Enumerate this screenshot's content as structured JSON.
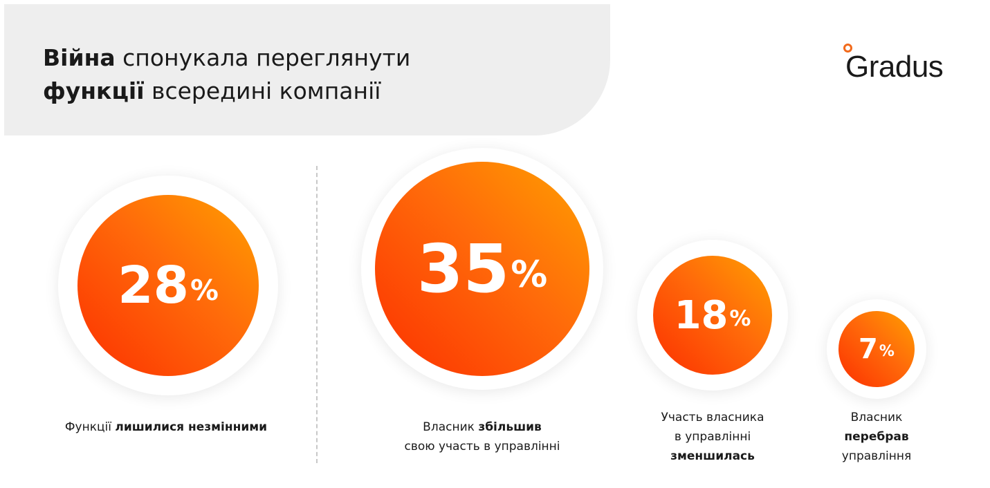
{
  "header": {
    "title_bold_1": "Війна",
    "title_rest_1": " спонукала переглянути",
    "title_bold_2": "функції",
    "title_rest_2": " всередині компанії"
  },
  "logo": {
    "text": "Gradus",
    "accent_color": "#f26a1b"
  },
  "colors": {
    "circle_gradient": [
      "#ffa000",
      "#ff6a0a",
      "#fc3000"
    ],
    "panel": "#eeeeee"
  },
  "chart_data": {
    "type": "bubble",
    "unit": "%",
    "title": "Війна спонукала переглянути функції всередині компанії",
    "items": [
      {
        "value": 28,
        "value_text": "28",
        "unit": "%",
        "label_parts": [
          {
            "text": "Функції ",
            "bold": false
          },
          {
            "text": "лишилися незмінними",
            "bold": true
          }
        ]
      },
      {
        "value": 35,
        "value_text": "35",
        "unit": "%",
        "label_parts": [
          {
            "text": "Власник ",
            "bold": false
          },
          {
            "text": "збільшив",
            "bold": true
          },
          {
            "text": "свою участь в управлінні",
            "bold": false
          }
        ]
      },
      {
        "value": 18,
        "value_text": "18",
        "unit": "%",
        "label_parts": [
          {
            "text": "Участь власника",
            "bold": false
          },
          {
            "text": "в управлінні",
            "bold": false
          },
          {
            "text": "зменшилась",
            "bold": true
          }
        ]
      },
      {
        "value": 7,
        "value_text": "7",
        "unit": "%",
        "label_parts": [
          {
            "text": "Власник",
            "bold": false
          },
          {
            "text": "перебрав",
            "bold": true
          },
          {
            "text": "управління",
            "bold": false
          }
        ]
      }
    ]
  }
}
